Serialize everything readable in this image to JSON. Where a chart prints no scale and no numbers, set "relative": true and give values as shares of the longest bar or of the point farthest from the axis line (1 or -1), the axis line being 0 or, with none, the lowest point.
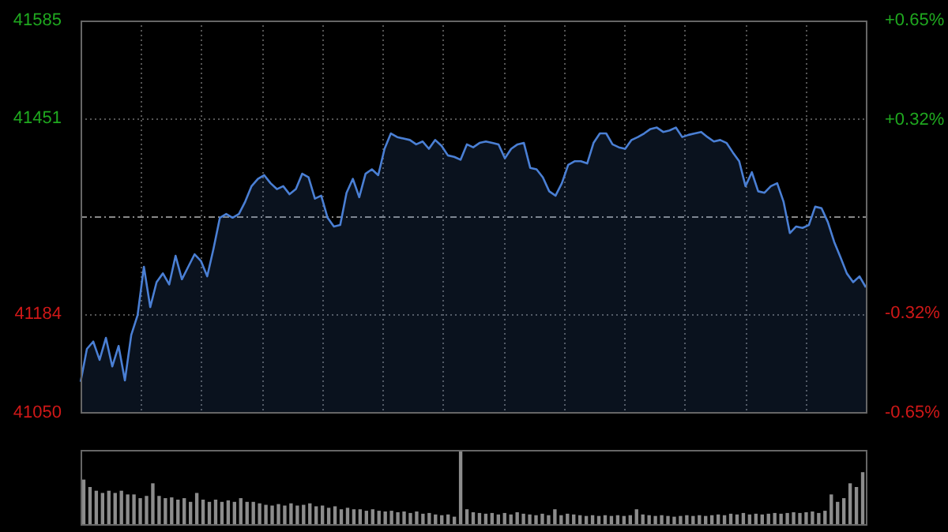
{
  "chart_data": [
    {
      "type": "area",
      "categories": [
        null,
        null,
        null,
        null,
        null,
        null,
        null,
        null,
        null,
        null,
        null,
        null,
        null,
        null,
        null,
        null,
        null,
        null,
        null,
        null,
        null,
        null,
        null,
        null,
        null,
        null,
        null,
        null,
        null,
        null,
        null,
        null,
        null,
        null,
        null,
        null,
        null,
        null,
        null,
        null,
        null,
        null,
        null,
        null,
        null,
        null,
        null,
        null,
        null,
        null,
        null,
        null,
        null,
        null,
        null,
        null,
        null,
        null,
        null,
        null,
        null,
        null,
        null,
        null,
        null,
        null,
        null,
        null,
        null,
        null,
        null,
        null,
        null,
        null,
        null,
        null,
        null,
        null,
        null,
        null,
        null,
        null,
        null,
        null,
        null,
        null,
        null,
        null,
        null,
        null,
        null,
        null,
        null,
        null,
        null,
        null,
        null,
        null,
        null,
        null,
        null,
        null,
        null,
        null,
        null,
        null,
        null,
        null,
        null,
        null,
        null,
        null,
        null,
        null,
        null,
        null,
        null,
        null,
        null,
        null,
        null,
        null,
        null,
        null,
        null
      ],
      "series": [
        {
          "color": "#4a7fd4",
          "values": [
            41092,
            41137,
            41147,
            41122,
            41152,
            41113,
            41141,
            41094,
            41156,
            41183,
            41249,
            41194,
            41228,
            41240,
            41225,
            41264,
            41232,
            41249,
            41266,
            41257,
            41236,
            41274,
            41316,
            41321,
            41316,
            41321,
            41338,
            41359,
            41369,
            41374,
            41363,
            41355,
            41359,
            41348,
            41355,
            41376,
            41371,
            41342,
            41346,
            41316,
            41304,
            41306,
            41350,
            41369,
            41344,
            41376,
            41382,
            41374,
            41410,
            41431,
            41426,
            41424,
            41422,
            41416,
            41420,
            41410,
            41422,
            41414,
            41401,
            41399,
            41395,
            41416,
            41412,
            41418,
            41420,
            41418,
            41416,
            41397,
            41410,
            41416,
            41418,
            41384,
            41382,
            41371,
            41352,
            41346,
            41363,
            41388,
            41393,
            41393,
            41390,
            41418,
            41431,
            41431,
            41416,
            41412,
            41410,
            41422,
            41426,
            41431,
            41437,
            41439,
            41433,
            41435,
            41439,
            41426,
            41429,
            41431,
            41433,
            41426,
            41420,
            41422,
            41418,
            41405,
            41393,
            41359,
            41378,
            41352,
            41350,
            41359,
            41363,
            41338,
            41295,
            41304,
            41302,
            41306,
            41331,
            41329,
            41310,
            41283,
            41262,
            41240,
            41228,
            41236,
            41221
          ]
        }
      ],
      "ylim": [
        41050,
        41585
      ],
      "yticks": [
        41050,
        41184,
        41451,
        41585
      ],
      "y2lim": [
        -0.65,
        0.65
      ],
      "y2ticks": [
        {
          "value": -0.65,
          "label": "-0.65%"
        },
        {
          "value": -0.32,
          "label": "-0.32%"
        },
        {
          "value": 0.32,
          "label": "+0.32%"
        },
        {
          "value": 0.65,
          "label": "+0.65%"
        }
      ],
      "ref_lines": [
        {
          "axis": "y",
          "value": 41317.5
        }
      ],
      "grid": true,
      "legend": false,
      "tick_labels": "y"
    },
    {
      "type": "bar",
      "relative": true,
      "categories": [
        null,
        null,
        null,
        null,
        null,
        null,
        null,
        null,
        null,
        null,
        null,
        null,
        null,
        null,
        null,
        null,
        null,
        null,
        null,
        null,
        null,
        null,
        null,
        null,
        null,
        null,
        null,
        null,
        null,
        null,
        null,
        null,
        null,
        null,
        null,
        null,
        null,
        null,
        null,
        null,
        null,
        null,
        null,
        null,
        null,
        null,
        null,
        null,
        null,
        null,
        null,
        null,
        null,
        null,
        null,
        null,
        null,
        null,
        null,
        null,
        null,
        null,
        null,
        null,
        null,
        null,
        null,
        null,
        null,
        null,
        null,
        null,
        null,
        null,
        null,
        null,
        null,
        null,
        null,
        null,
        null,
        null,
        null,
        null,
        null,
        null,
        null,
        null,
        null,
        null,
        null,
        null,
        null,
        null,
        null,
        null,
        null,
        null,
        null,
        null,
        null,
        null,
        null,
        null,
        null,
        null,
        null,
        null,
        null,
        null,
        null,
        null,
        null,
        null,
        null,
        null,
        null,
        null,
        null,
        null,
        null,
        null,
        null,
        null,
        null
      ],
      "color": "#8c8c8c",
      "values": [
        0.6,
        0.5,
        0.45,
        0.42,
        0.45,
        0.42,
        0.45,
        0.4,
        0.4,
        0.35,
        0.38,
        0.55,
        0.38,
        0.35,
        0.36,
        0.33,
        0.35,
        0.3,
        0.42,
        0.33,
        0.3,
        0.33,
        0.3,
        0.32,
        0.3,
        0.35,
        0.3,
        0.3,
        0.28,
        0.26,
        0.25,
        0.27,
        0.25,
        0.28,
        0.25,
        0.26,
        0.28,
        0.24,
        0.25,
        0.22,
        0.24,
        0.2,
        0.22,
        0.2,
        0.2,
        0.18,
        0.2,
        0.18,
        0.17,
        0.18,
        0.16,
        0.17,
        0.15,
        0.17,
        0.14,
        0.15,
        0.13,
        0.12,
        0.13,
        0.1,
        1,
        0.2,
        0.16,
        0.15,
        0.14,
        0.15,
        0.13,
        0.15,
        0.13,
        0.16,
        0.14,
        0.13,
        0.12,
        0.14,
        0.12,
        0.2,
        0.12,
        0.14,
        0.13,
        0.12,
        0.11,
        0.12,
        0.11,
        0.12,
        0.11,
        0.12,
        0.11,
        0.12,
        0.2,
        0.13,
        0.12,
        0.11,
        0.12,
        0.11,
        0.1,
        0.11,
        0.12,
        0.11,
        0.12,
        0.11,
        0.12,
        0.13,
        0.12,
        0.14,
        0.13,
        0.15,
        0.13,
        0.14,
        0.13,
        0.14,
        0.15,
        0.14,
        0.15,
        0.16,
        0.15,
        0.16,
        0.17,
        0.15,
        0.18,
        0.4,
        0.3,
        0.35,
        0.55,
        0.5,
        0.7
      ],
      "legend": false,
      "grid": false,
      "tick_labels": false
    }
  ]
}
